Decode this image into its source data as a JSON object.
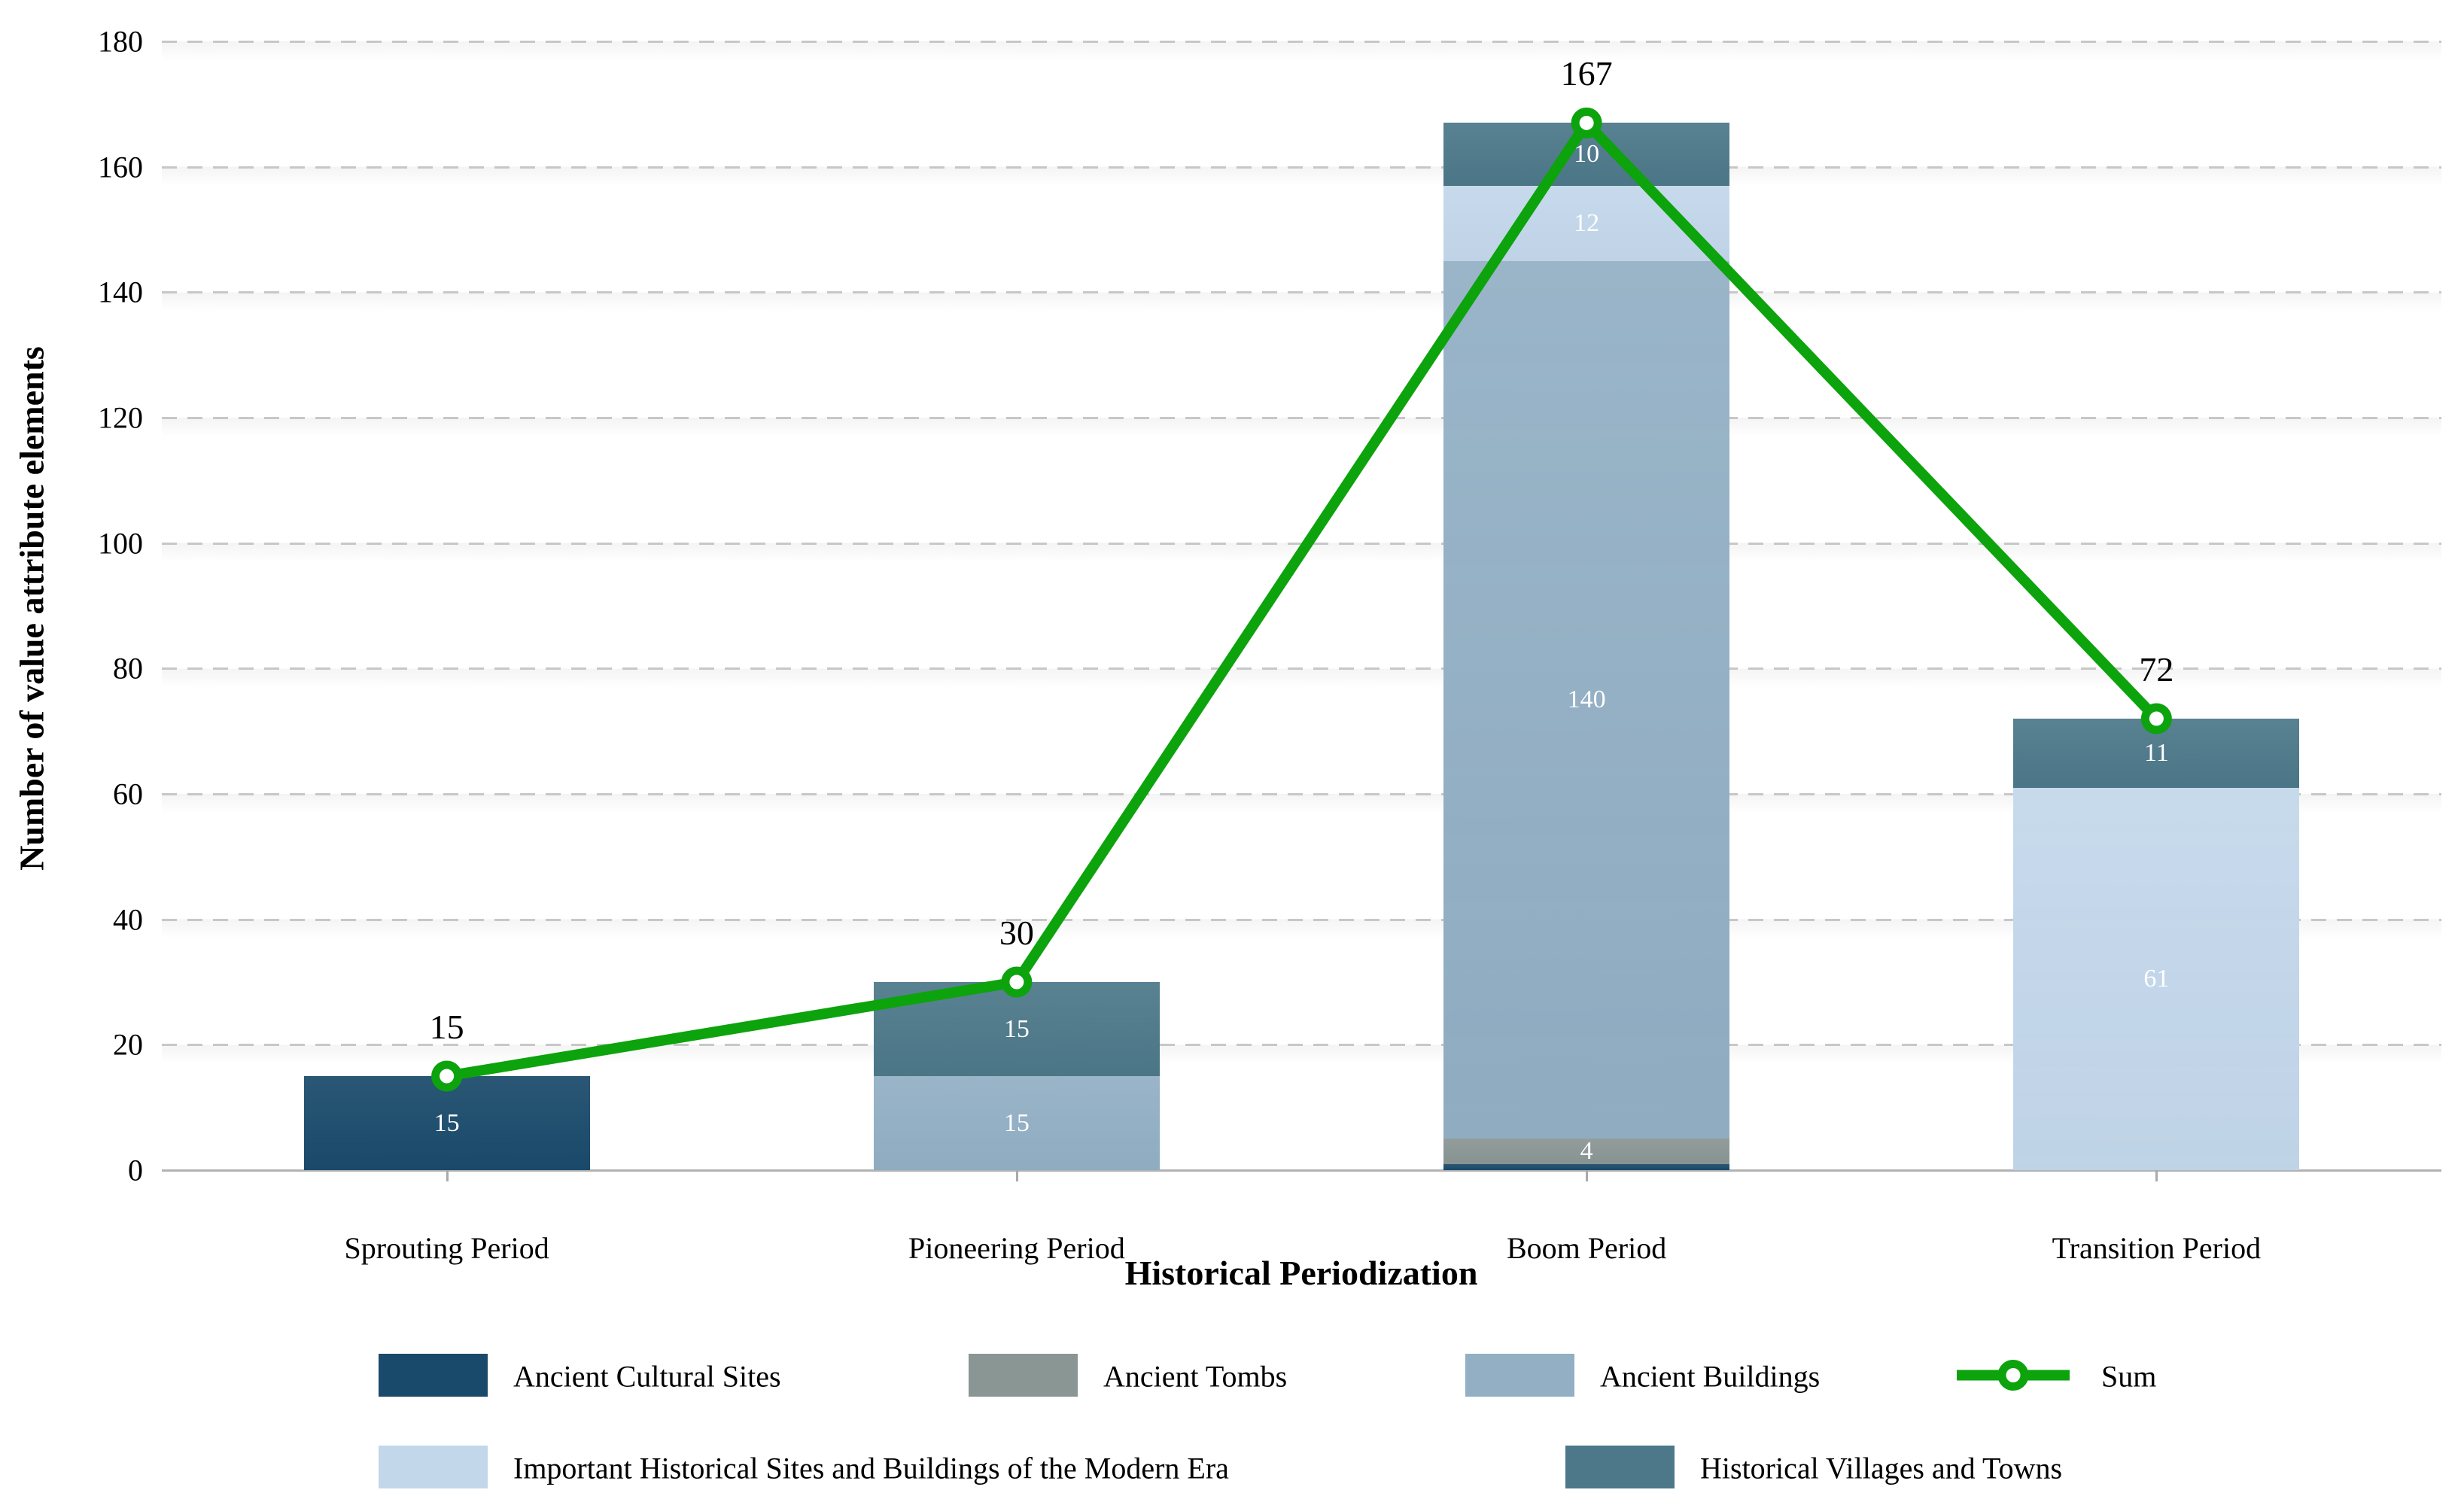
{
  "figure": {
    "ylabel": "Number of value attribute elements",
    "xlabel": "Historical Periodization"
  },
  "chart_data": {
    "type": "bar",
    "stacked": true,
    "grid": "horizontal-dashed",
    "legend_position": "bottom",
    "categories": [
      "Sprouting Period",
      "Pioneering Period",
      "Boom Period",
      "Transition Period"
    ],
    "series": [
      {
        "name": "Ancient Cultural Sites",
        "color": "#1A4A6B",
        "values": [
          15,
          0,
          1,
          0
        ]
      },
      {
        "name": "Ancient Tombs",
        "color": "#8A9693",
        "values": [
          0,
          0,
          4,
          0
        ]
      },
      {
        "name": "Ancient Buildings",
        "color": "#92AFC4",
        "values": [
          0,
          15,
          140,
          0
        ]
      },
      {
        "name": "Important Historical Sites and Buildings of the Modern Era",
        "color": "#C3D7EB",
        "values": [
          0,
          0,
          12,
          61
        ]
      },
      {
        "name": "Historical Villages and Towns",
        "color": "#4C7889",
        "values": [
          0,
          15,
          10,
          11
        ]
      }
    ],
    "line_series": {
      "name": "Sum",
      "color": "#0CA30C",
      "values": [
        15,
        30,
        167,
        72
      ]
    },
    "bar_value_labels": {
      "Sprouting Period": [
        15
      ],
      "Pioneering Period": [
        15,
        15
      ],
      "Boom Period": [
        4,
        140,
        12,
        10
      ],
      "Transition Period": [
        61,
        11
      ]
    },
    "sum_annotations": [
      "15",
      "30",
      "167",
      "72"
    ],
    "ylim": [
      0,
      180
    ],
    "yticks": [
      0,
      20,
      40,
      60,
      80,
      100,
      120,
      140,
      160,
      180
    ]
  }
}
